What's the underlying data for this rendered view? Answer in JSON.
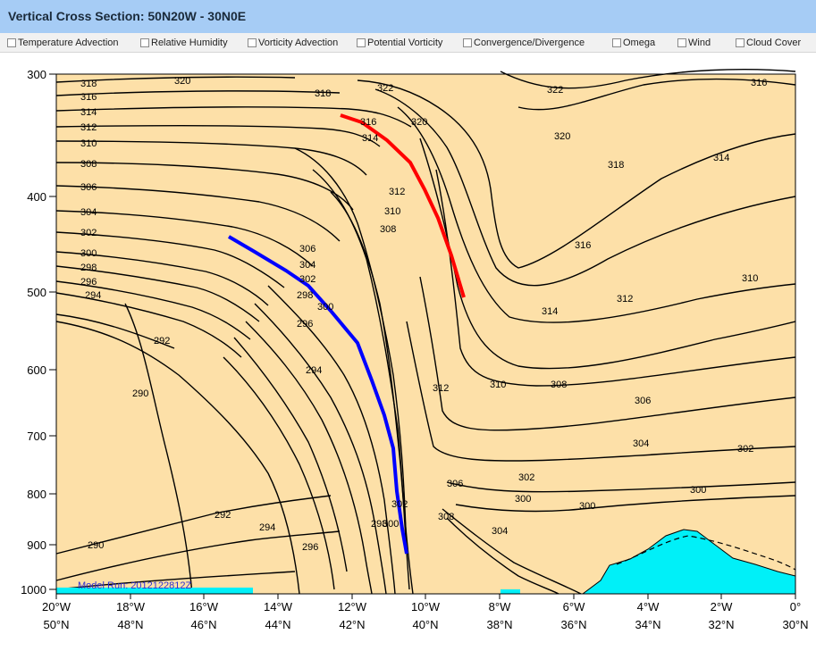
{
  "window": {
    "title": "Vertical Cross Section: 50N20W - 30N0E"
  },
  "toolbar": {
    "options": [
      {
        "label": "Temperature Advection",
        "checked": false
      },
      {
        "label": "Relative Humidity",
        "checked": false
      },
      {
        "label": "Vorticity Advection",
        "checked": false
      },
      {
        "label": "Potential Vorticity",
        "checked": false
      },
      {
        "label": "Convergence/Divergence",
        "checked": false
      },
      {
        "label": "Omega",
        "checked": false
      },
      {
        "label": "Wind",
        "checked": false
      },
      {
        "label": "Cloud Cover",
        "checked": false
      }
    ]
  },
  "plot": {
    "background_color": "#fde0a8",
    "terrain_color": "#00f0f8",
    "model_run": "Model Run: 2012122812Z",
    "y_ticks": [
      "300",
      "400",
      "500",
      "600",
      "700",
      "800",
      "900",
      "1000"
    ],
    "x_ticks_lon": [
      "20°W",
      "18°W",
      "16°W",
      "14°W",
      "12°W",
      "10°W",
      "8°W",
      "6°W",
      "4°W",
      "2°W",
      "0°"
    ],
    "x_ticks_lat": [
      "50°N",
      "48°N",
      "46°N",
      "44°N",
      "42°N",
      "40°N",
      "38°N",
      "36°N",
      "34°N",
      "32°N",
      "30°N"
    ],
    "red_line_color": "#ff0000",
    "blue_line_color": "#0000ff"
  }
}
